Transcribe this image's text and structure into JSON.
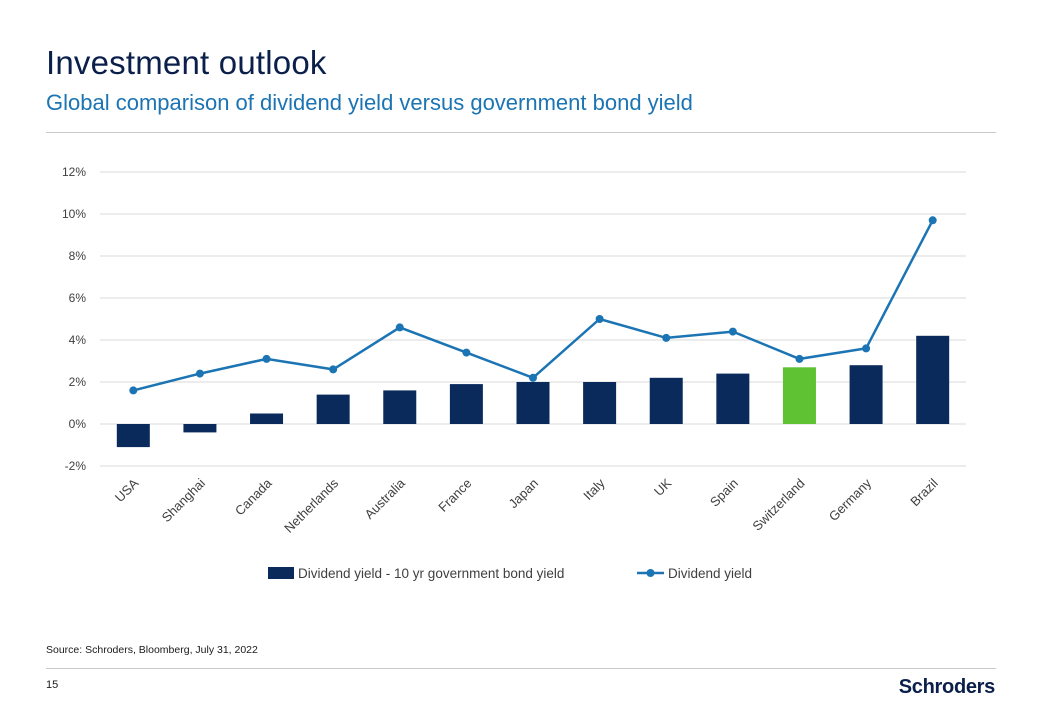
{
  "header": {
    "title": "Investment outlook",
    "subtitle": "Global comparison of dividend yield versus government bond yield"
  },
  "colors": {
    "bar": "#0b2a5c",
    "bar_highlight": "#5ec232",
    "line": "#1b74b3",
    "grid": "#d9d9d9",
    "text": "#404040"
  },
  "chart_data": {
    "type": "bar",
    "title": "",
    "xlabel": "",
    "ylabel": "",
    "categories": [
      "USA",
      "Shanghai",
      "Canada",
      "Netherlands",
      "Australia",
      "France",
      "Japan",
      "Italy",
      "UK",
      "Spain",
      "Switzerland",
      "Germany",
      "Brazil"
    ],
    "ylim": [
      -2,
      12
    ],
    "yticks": [
      -2,
      0,
      2,
      4,
      6,
      8,
      10,
      12
    ],
    "ytick_labels": [
      "-2%",
      "0%",
      "2%",
      "4%",
      "6%",
      "8%",
      "10%",
      "12%"
    ],
    "highlight_category": "Switzerland",
    "series": [
      {
        "name": "Dividend yield - 10 yr government bond yield",
        "type": "bar",
        "values": [
          -1.1,
          -0.4,
          0.5,
          1.4,
          1.6,
          1.9,
          2.0,
          2.0,
          2.2,
          2.4,
          2.7,
          2.8,
          4.2
        ]
      },
      {
        "name": "Dividend yield",
        "type": "line",
        "values": [
          1.6,
          2.4,
          3.1,
          2.6,
          4.6,
          3.4,
          2.2,
          5.0,
          4.1,
          4.4,
          3.1,
          3.6,
          9.7
        ]
      }
    ],
    "legend_position": "bottom"
  },
  "footer": {
    "source": "Source: Schroders, Bloomberg, July 31, 2022",
    "page_number": "15",
    "logo": "Schroders"
  }
}
